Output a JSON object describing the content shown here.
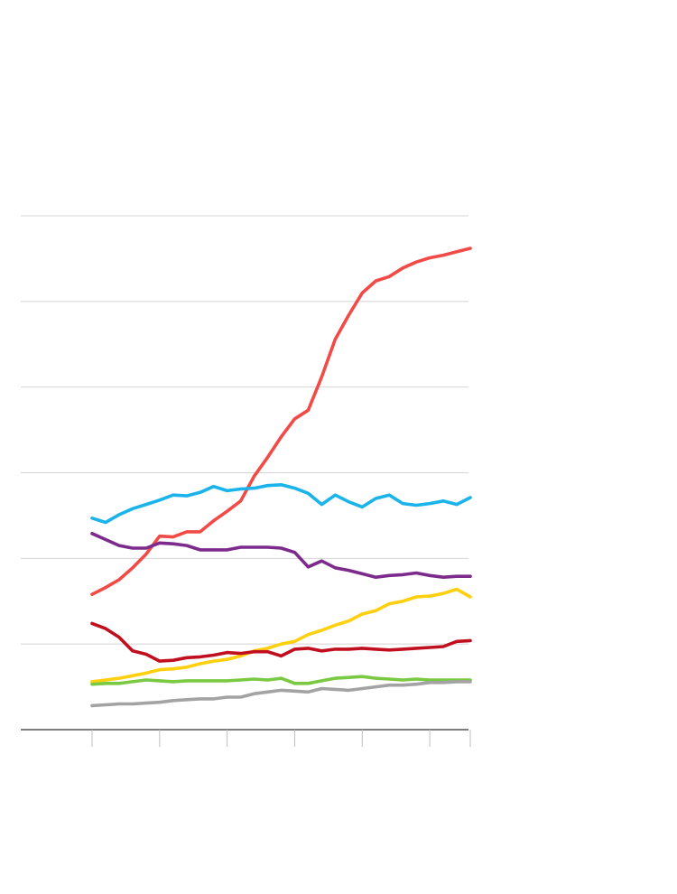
{
  "chart_data": {
    "type": "line",
    "title": "",
    "xlabel": "",
    "ylabel": "",
    "x": [
      0,
      1,
      2,
      3,
      4,
      5,
      6,
      7,
      8,
      9,
      10,
      11,
      12,
      13,
      14,
      15,
      16,
      17,
      18,
      19,
      20,
      21,
      22,
      23,
      24,
      25,
      26,
      27,
      28
    ],
    "xlim": [
      0,
      28
    ],
    "ylim": [
      0,
      6
    ],
    "grid": true,
    "series": [
      {
        "color": "#f24a46",
        "values": [
          1.58,
          1.66,
          1.75,
          1.89,
          2.05,
          2.26,
          2.25,
          2.31,
          2.31,
          2.44,
          2.55,
          2.67,
          2.96,
          3.18,
          3.42,
          3.63,
          3.73,
          4.12,
          4.56,
          4.84,
          5.1,
          5.24,
          5.29,
          5.39,
          5.46,
          5.51,
          5.54,
          5.58,
          5.62
        ]
      },
      {
        "color": "#1ab3ea",
        "values": [
          2.47,
          2.42,
          2.51,
          2.58,
          2.63,
          2.68,
          2.74,
          2.73,
          2.77,
          2.84,
          2.79,
          2.81,
          2.82,
          2.85,
          2.86,
          2.82,
          2.76,
          2.63,
          2.74,
          2.66,
          2.6,
          2.7,
          2.74,
          2.64,
          2.62,
          2.64,
          2.67,
          2.63,
          2.71
        ]
      },
      {
        "color": "#7d2a8d",
        "values": [
          2.29,
          2.22,
          2.15,
          2.12,
          2.12,
          2.18,
          2.17,
          2.15,
          2.1,
          2.1,
          2.1,
          2.13,
          2.13,
          2.13,
          2.12,
          2.07,
          1.9,
          1.97,
          1.89,
          1.86,
          1.82,
          1.78,
          1.8,
          1.81,
          1.83,
          1.8,
          1.78,
          1.79,
          1.79
        ]
      },
      {
        "color": "#ffd010",
        "values": [
          0.56,
          0.58,
          0.6,
          0.63,
          0.66,
          0.7,
          0.71,
          0.73,
          0.77,
          0.8,
          0.82,
          0.86,
          0.92,
          0.95,
          1.0,
          1.03,
          1.11,
          1.16,
          1.22,
          1.27,
          1.35,
          1.39,
          1.47,
          1.5,
          1.55,
          1.56,
          1.59,
          1.64,
          1.55
        ]
      },
      {
        "color": "#c0101f",
        "values": [
          1.24,
          1.18,
          1.08,
          0.92,
          0.88,
          0.8,
          0.81,
          0.84,
          0.85,
          0.87,
          0.9,
          0.89,
          0.91,
          0.91,
          0.86,
          0.94,
          0.95,
          0.92,
          0.94,
          0.94,
          0.95,
          0.94,
          0.93,
          0.94,
          0.95,
          0.96,
          0.97,
          1.03,
          1.04
        ]
      },
      {
        "color": "#7ac943",
        "values": [
          0.53,
          0.54,
          0.54,
          0.56,
          0.58,
          0.57,
          0.56,
          0.57,
          0.57,
          0.57,
          0.57,
          0.58,
          0.59,
          0.58,
          0.6,
          0.54,
          0.54,
          0.57,
          0.6,
          0.61,
          0.62,
          0.6,
          0.59,
          0.58,
          0.59,
          0.58,
          0.58,
          0.58,
          0.58
        ]
      },
      {
        "color": "#a3a3a3",
        "values": [
          0.28,
          0.29,
          0.3,
          0.3,
          0.31,
          0.32,
          0.34,
          0.35,
          0.36,
          0.36,
          0.38,
          0.38,
          0.42,
          0.44,
          0.46,
          0.45,
          0.44,
          0.48,
          0.47,
          0.46,
          0.48,
          0.5,
          0.52,
          0.52,
          0.53,
          0.55,
          0.55,
          0.56,
          0.56
        ]
      }
    ]
  }
}
